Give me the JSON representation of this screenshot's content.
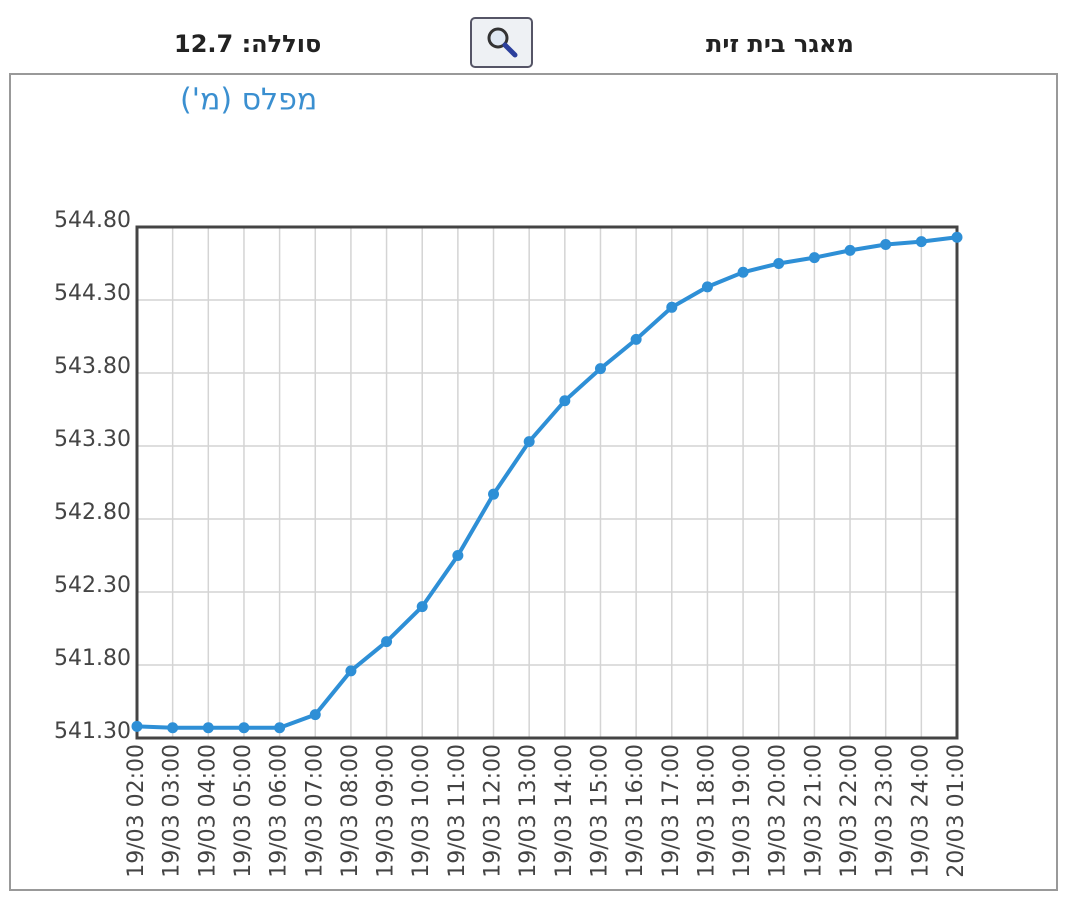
{
  "header": {
    "title": "מאגר בית זית",
    "battery": "סוללה: 12.7"
  },
  "chart_data": {
    "type": "line",
    "title": "מפלס (מ')",
    "categories": [
      "19/03 02:00",
      "19/03 03:00",
      "19/03 04:00",
      "19/03 05:00",
      "19/03 06:00",
      "19/03 07:00",
      "19/03 08:00",
      "19/03 09:00",
      "19/03 10:00",
      "19/03 11:00",
      "19/03 12:00",
      "19/03 13:00",
      "19/03 14:00",
      "19/03 15:00",
      "19/03 16:00",
      "19/03 17:00",
      "19/03 18:00",
      "19/03 19:00",
      "19/03 20:00",
      "19/03 21:00",
      "19/03 22:00",
      "19/03 23:00",
      "19/03 24:00",
      "20/03 01:00"
    ],
    "series": [
      {
        "name": "מפלס",
        "color": "#2e8fd6",
        "values": [
          541.38,
          541.37,
          541.37,
          541.37,
          541.37,
          541.46,
          541.76,
          541.96,
          542.2,
          542.55,
          542.97,
          543.33,
          543.61,
          543.83,
          544.03,
          544.25,
          544.39,
          544.49,
          544.55,
          544.59,
          544.64,
          544.68,
          544.7,
          544.73
        ]
      }
    ],
    "ylim": [
      541.3,
      544.8
    ],
    "yticks": [
      {
        "value": 541.3,
        "label": "541.30"
      },
      {
        "value": 541.8,
        "label": "541.80"
      },
      {
        "value": 542.3,
        "label": "542.30"
      },
      {
        "value": 542.8,
        "label": "542.80"
      },
      {
        "value": 543.3,
        "label": "543.30"
      },
      {
        "value": 543.8,
        "label": "543.80"
      },
      {
        "value": 544.3,
        "label": "544.30"
      },
      {
        "value": 544.8,
        "label": "544.80"
      }
    ],
    "grid": true
  }
}
